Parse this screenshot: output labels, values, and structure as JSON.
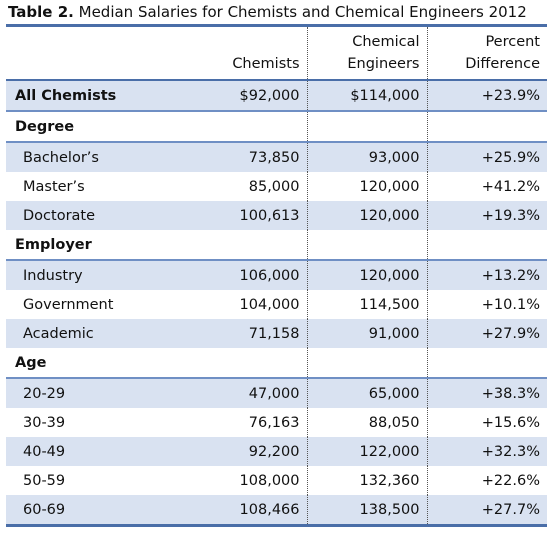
{
  "caption": {
    "label": "Table 2.",
    "title": "Median Salaries for Chemists and Chemical Engineers 2012"
  },
  "columns": {
    "col1": "Chemists",
    "col2_line1": "Chemical",
    "col2_line2": "Engineers",
    "col3_line1": "Percent",
    "col3_line2": "Difference"
  },
  "rows": [
    {
      "label": "All Chemists",
      "chemists": "$92,000",
      "engineers": "$114,000",
      "diff": "+23.9%"
    },
    {
      "label": "Degree",
      "chemists": "",
      "engineers": "",
      "diff": ""
    },
    {
      "label": "Bachelor’s",
      "chemists": "73,850",
      "engineers": "93,000",
      "diff": "+25.9%"
    },
    {
      "label": "Master’s",
      "chemists": "85,000",
      "engineers": "120,000",
      "diff": "+41.2%"
    },
    {
      "label": "Doctorate",
      "chemists": "100,613",
      "engineers": "120,000",
      "diff": "+19.3%"
    },
    {
      "label": "Employer",
      "chemists": "",
      "engineers": "",
      "diff": ""
    },
    {
      "label": "Industry",
      "chemists": "106,000",
      "engineers": "120,000",
      "diff": "+13.2%"
    },
    {
      "label": "Government",
      "chemists": "104,000",
      "engineers": "114,500",
      "diff": "+10.1%"
    },
    {
      "label": "Academic",
      "chemists": "71,158",
      "engineers": "91,000",
      "diff": "+27.9%"
    },
    {
      "label": "Age",
      "chemists": "",
      "engineers": "",
      "diff": ""
    },
    {
      "label": "20-29",
      "chemists": "47,000",
      "engineers": "65,000",
      "diff": "+38.3%"
    },
    {
      "label": "30-39",
      "chemists": "76,163",
      "engineers": "88,050",
      "diff": "+15.6%"
    },
    {
      "label": "40-49",
      "chemists": "92,200",
      "engineers": "122,000",
      "diff": "+32.3%"
    },
    {
      "label": "50-59",
      "chemists": "108,000",
      "engineers": "132,360",
      "diff": "+22.6%"
    },
    {
      "label": "60-69",
      "chemists": "108,466",
      "engineers": "138,500",
      "diff": "+27.7%"
    }
  ],
  "colors": {
    "rule": "#4a6ea8",
    "shade": "#d9e2f1"
  }
}
